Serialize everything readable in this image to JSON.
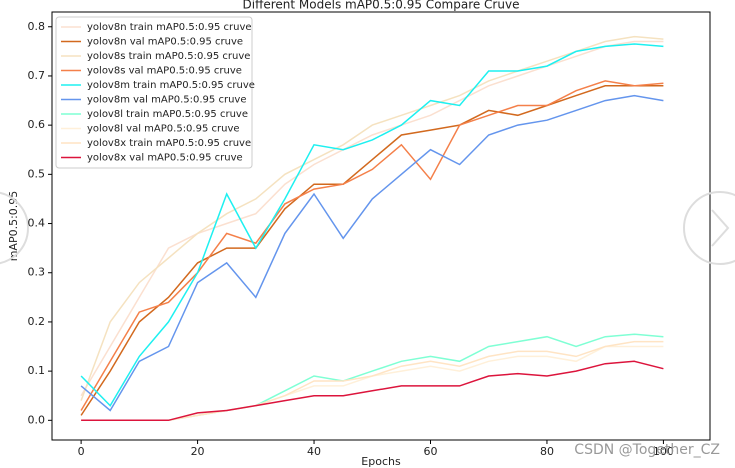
{
  "chart_data": {
    "type": "line",
    "title": "Different Models mAP0.5:0.95 Compare Cruve",
    "xlabel": "Epochs",
    "ylabel": "mAP0.5:0.95",
    "watermark": "CSDN @Together_CZ",
    "x": [
      0,
      5,
      10,
      15,
      20,
      25,
      30,
      35,
      40,
      45,
      50,
      55,
      60,
      65,
      70,
      75,
      80,
      85,
      90,
      95,
      100
    ],
    "xlim": [
      -5,
      108
    ],
    "ylim": [
      -0.04,
      0.83
    ],
    "xticks": [
      0,
      20,
      40,
      60,
      80,
      100
    ],
    "yticks": [
      {
        "value": 0,
        "label": "0.0"
      },
      0.1,
      0.2,
      0.3,
      0.4,
      0.5,
      0.6,
      0.7,
      0.8
    ],
    "legend": "upper left",
    "series": [
      {
        "name": "yolov8n train mAP0.5:0.95 cruve",
        "color": "#fbe0d0",
        "values": [
          0.05,
          0.15,
          0.25,
          0.35,
          0.38,
          0.4,
          0.42,
          0.48,
          0.52,
          0.55,
          0.58,
          0.6,
          0.62,
          0.65,
          0.68,
          0.7,
          0.72,
          0.74,
          0.76,
          0.77,
          0.77
        ]
      },
      {
        "name": "yolov8n val mAP0.5:0.95 cruve",
        "color": "#d2691e",
        "values": [
          0.01,
          0.1,
          0.2,
          0.25,
          0.32,
          0.35,
          0.35,
          0.43,
          0.48,
          0.48,
          0.53,
          0.58,
          0.59,
          0.6,
          0.63,
          0.62,
          0.64,
          0.66,
          0.68,
          0.68,
          0.68
        ]
      },
      {
        "name": "yolov8s train mAP0.5:0.95 cruve",
        "color": "#f5e2c0",
        "values": [
          0.04,
          0.2,
          0.28,
          0.33,
          0.38,
          0.42,
          0.45,
          0.5,
          0.53,
          0.56,
          0.6,
          0.62,
          0.64,
          0.66,
          0.69,
          0.71,
          0.73,
          0.75,
          0.77,
          0.78,
          0.775
        ]
      },
      {
        "name": "yolov8s val mAP0.5:0.95 cruve",
        "color": "#f4804a",
        "values": [
          0.02,
          0.12,
          0.22,
          0.24,
          0.3,
          0.38,
          0.36,
          0.44,
          0.47,
          0.48,
          0.51,
          0.56,
          0.49,
          0.6,
          0.62,
          0.64,
          0.64,
          0.67,
          0.69,
          0.68,
          0.685
        ]
      },
      {
        "name": "yolov8m train mAP0.5:0.95 cruve",
        "color": "#1ef0f0",
        "values": [
          0.09,
          0.03,
          0.13,
          0.2,
          0.3,
          0.46,
          0.35,
          0.45,
          0.56,
          0.55,
          0.57,
          0.6,
          0.65,
          0.64,
          0.71,
          0.71,
          0.72,
          0.75,
          0.76,
          0.765,
          0.76
        ]
      },
      {
        "name": "yolov8m val mAP0.5:0.95 cruve",
        "color": "#6495ed",
        "values": [
          0.07,
          0.02,
          0.12,
          0.15,
          0.28,
          0.32,
          0.25,
          0.38,
          0.46,
          0.37,
          0.45,
          0.5,
          0.55,
          0.52,
          0.58,
          0.6,
          0.61,
          0.63,
          0.65,
          0.66,
          0.65
        ]
      },
      {
        "name": "yolov8l train mAP0.5:0.95 cruve",
        "color": "#7fffd4",
        "values": [
          0,
          0,
          0,
          0,
          0.01,
          0.02,
          0.03,
          0.06,
          0.09,
          0.08,
          0.1,
          0.12,
          0.13,
          0.12,
          0.15,
          0.16,
          0.17,
          0.15,
          0.17,
          0.175,
          0.17
        ]
      },
      {
        "name": "yolov8l val mAP0.5:0.95 cruve",
        "color": "#fff0d9",
        "values": [
          0,
          0,
          0,
          0,
          0.01,
          0.02,
          0.03,
          0.05,
          0.07,
          0.07,
          0.09,
          0.1,
          0.11,
          0.1,
          0.12,
          0.13,
          0.13,
          0.12,
          0.15,
          0.15,
          0.15
        ]
      },
      {
        "name": "yolov8x train mAP0.5:0.95 cruve",
        "color": "#ffe4c4",
        "values": [
          0,
          0,
          0,
          0,
          0.01,
          0.02,
          0.03,
          0.05,
          0.08,
          0.08,
          0.09,
          0.11,
          0.12,
          0.11,
          0.13,
          0.14,
          0.14,
          0.13,
          0.15,
          0.16,
          0.16
        ]
      },
      {
        "name": "yolov8x val mAP0.5:0.95 cruve",
        "color": "#dc143c",
        "values": [
          0,
          0,
          0,
          0,
          0.015,
          0.02,
          0.03,
          0.04,
          0.05,
          0.05,
          0.06,
          0.07,
          0.07,
          0.07,
          0.09,
          0.095,
          0.09,
          0.1,
          0.115,
          0.12,
          0.105
        ]
      }
    ]
  }
}
